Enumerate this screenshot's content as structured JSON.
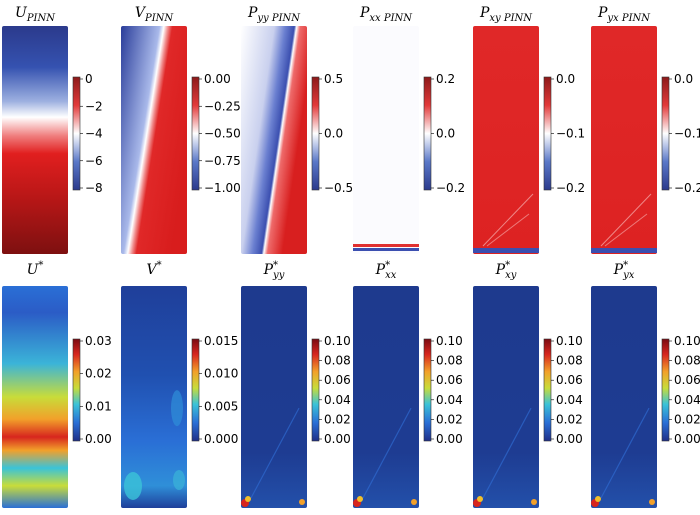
{
  "panels": [
    {
      "id": "u-pinn",
      "title": "U",
      "sub": "PINN",
      "sup": "",
      "fieldType": "u",
      "cbar": "rwb",
      "cbarTicks": [
        "0",
        "−2",
        "−4",
        "−6",
        "−8"
      ]
    },
    {
      "id": "v-pinn",
      "title": "V",
      "sub": "PINN",
      "sup": "",
      "fieldType": "v",
      "cbar": "rwb",
      "cbarTicks": [
        "0.00",
        "−0.25",
        "−0.50",
        "−0.75",
        "−1.00"
      ]
    },
    {
      "id": "pyy-pinn",
      "title": "P",
      "sub": "yy PINN",
      "sup": "",
      "fieldType": "pyy",
      "cbar": "rwb",
      "cbarTicks": [
        "0.5",
        "0.0",
        "−0.5"
      ]
    },
    {
      "id": "pxx-pinn",
      "title": "P",
      "sub": "xx PINN",
      "sup": "",
      "fieldType": "pxx",
      "cbar": "rwb",
      "cbarTicks": [
        "0.2",
        "0.0",
        "−0.2"
      ]
    },
    {
      "id": "pxy-pinn",
      "title": "P",
      "sub": "xy PINN",
      "sup": "",
      "fieldType": "pxy",
      "cbar": "rwb",
      "cbarTicks": [
        "0.0",
        "−0.1",
        "−0.2"
      ]
    },
    {
      "id": "pyx-pinn",
      "title": "P",
      "sub": "yx PINN",
      "sup": "",
      "fieldType": "pyx",
      "cbar": "rwb",
      "cbarTicks": [
        "0.0",
        "−0.1",
        "−0.2"
      ]
    },
    {
      "id": "u-star",
      "title": "U",
      "sub": "",
      "sup": "*",
      "fieldType": "ustar",
      "cbar": "jet",
      "cbarTicks": [
        "0.03",
        "0.02",
        "0.01",
        "0.00"
      ]
    },
    {
      "id": "v-star",
      "title": "V",
      "sub": "",
      "sup": "*",
      "fieldType": "vstar",
      "cbar": "jet",
      "cbarTicks": [
        "0.015",
        "0.010",
        "0.005",
        "0.000"
      ]
    },
    {
      "id": "pyy-star",
      "title": "P",
      "sub": "yy",
      "sup": "*",
      "fieldType": "pstar",
      "cbar": "jet",
      "cbarTicks": [
        "0.10",
        "0.08",
        "0.06",
        "0.04",
        "0.02",
        "0.00"
      ]
    },
    {
      "id": "pxx-star",
      "title": "P",
      "sub": "xx",
      "sup": "*",
      "fieldType": "pstar",
      "cbar": "jet",
      "cbarTicks": [
        "0.10",
        "0.08",
        "0.06",
        "0.04",
        "0.02",
        "0.00"
      ]
    },
    {
      "id": "pxy-star",
      "title": "P",
      "sub": "xy",
      "sup": "*",
      "fieldType": "pstar",
      "cbar": "jet",
      "cbarTicks": [
        "0.10",
        "0.08",
        "0.06",
        "0.04",
        "0.02",
        "0.00"
      ]
    },
    {
      "id": "pyx-star",
      "title": "P",
      "sub": "yx",
      "sup": "*",
      "fieldType": "pstar",
      "cbar": "jet",
      "cbarTicks": [
        "0.10",
        "0.08",
        "0.06",
        "0.04",
        "0.02",
        "0.00"
      ]
    }
  ],
  "colors": {
    "rwb": [
      "#2b3a8c",
      "#5a78c8",
      "#ffffff",
      "#e23a3a",
      "#8c1a1a"
    ],
    "jet": [
      "#1f2f88",
      "#2a6fd6",
      "#3bc3d8",
      "#c8dc3a",
      "#f2a02a",
      "#d7261e",
      "#7a0b12"
    ]
  }
}
